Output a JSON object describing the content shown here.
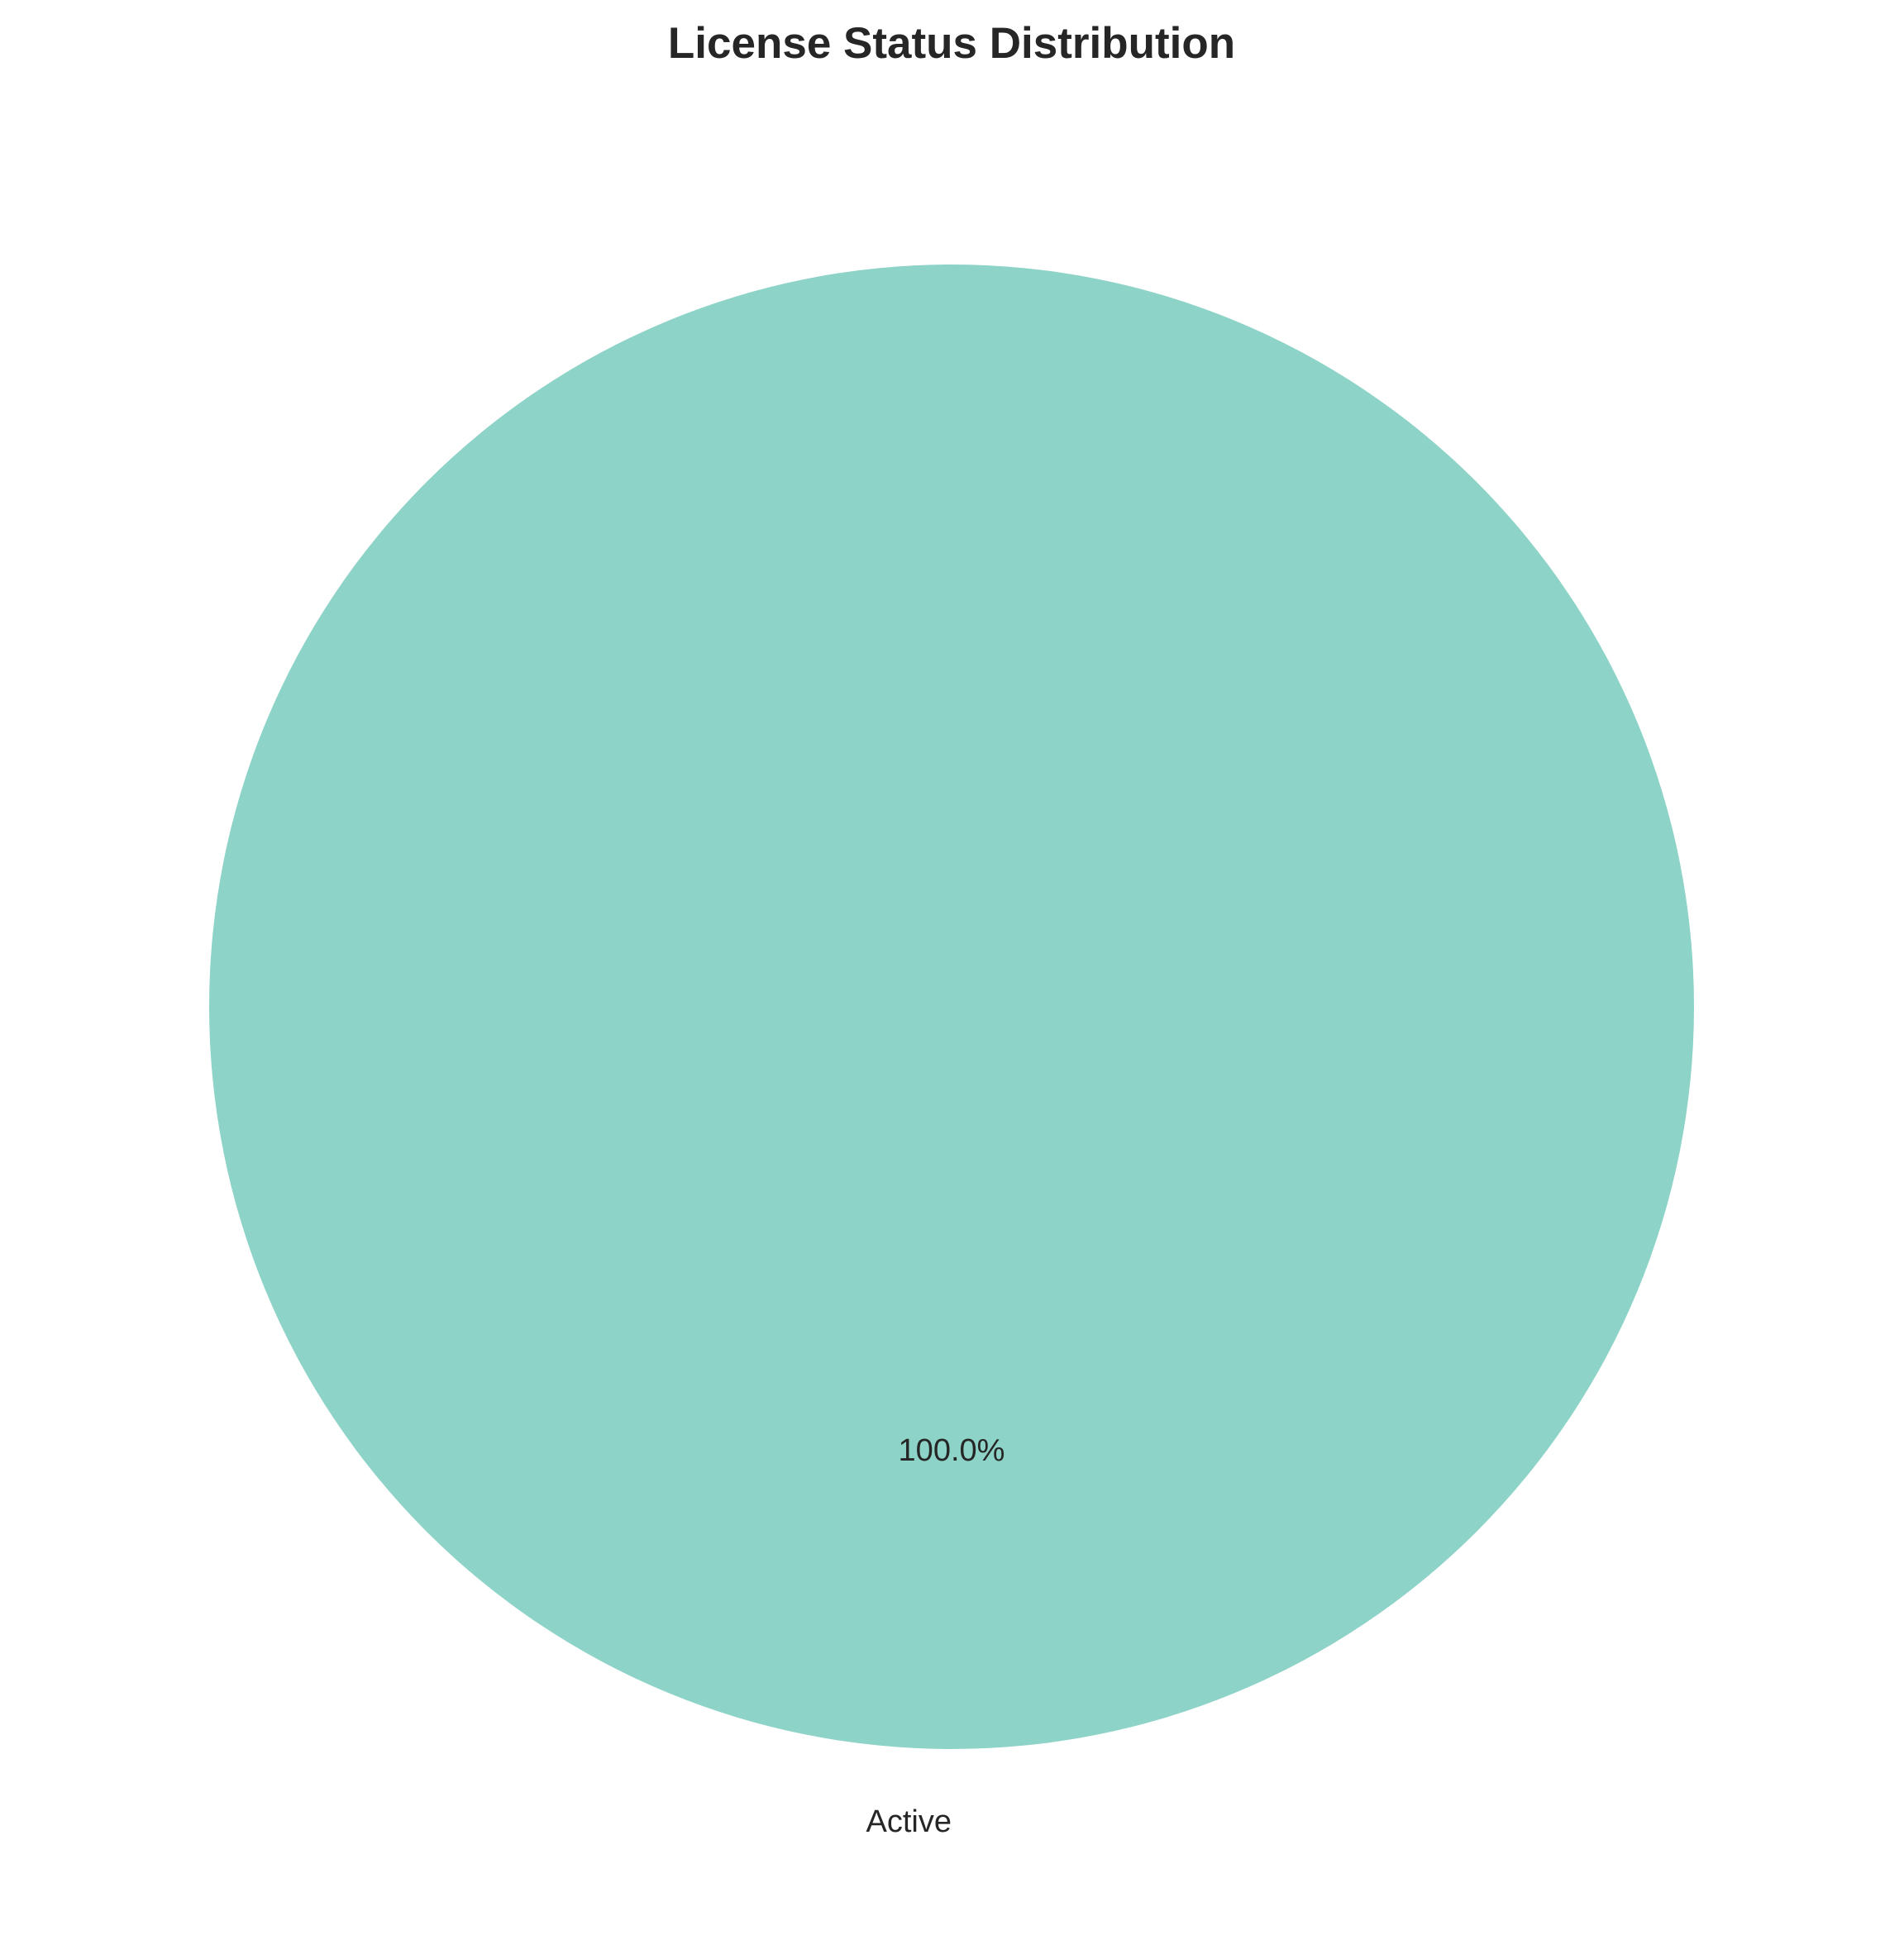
{
  "chart_data": {
    "type": "pie",
    "title": "License Status Distribution",
    "slices": [
      {
        "label": "Active",
        "value": 100.0,
        "pct_label": "100.0%",
        "color": "#8dd3c7"
      }
    ],
    "start_angle_deg": 90,
    "counterclock": true,
    "legend": "none"
  }
}
